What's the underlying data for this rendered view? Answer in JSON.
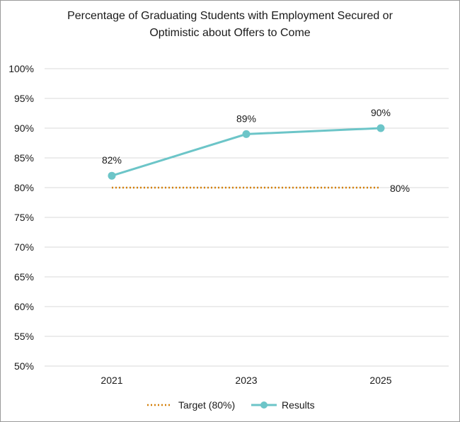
{
  "chart_data": {
    "type": "line",
    "title_line1": "Percentage of Graduating Students with Employment Secured or",
    "title_line2": "Optimistic about Offers to Come",
    "categories": [
      "2021",
      "2023",
      "2025"
    ],
    "ylim": [
      50,
      100
    ],
    "ytick_values": [
      50,
      55,
      60,
      65,
      70,
      75,
      80,
      85,
      90,
      95,
      100
    ],
    "ytick_labels": [
      "50%",
      "55%",
      "60%",
      "65%",
      "70%",
      "75%",
      "80%",
      "85%",
      "90%",
      "95%",
      "100%"
    ],
    "grid": true,
    "legend_position": "bottom",
    "series": [
      {
        "name": "Target (80%)",
        "style": "dotted",
        "color": "#D4800A",
        "values": [
          80,
          80,
          80
        ],
        "end_label": "80%"
      },
      {
        "name": "Results",
        "style": "solid-markers",
        "color": "#6CC5C8",
        "values": [
          82,
          89,
          90
        ],
        "data_labels": [
          "82%",
          "89%",
          "90%"
        ]
      }
    ]
  }
}
